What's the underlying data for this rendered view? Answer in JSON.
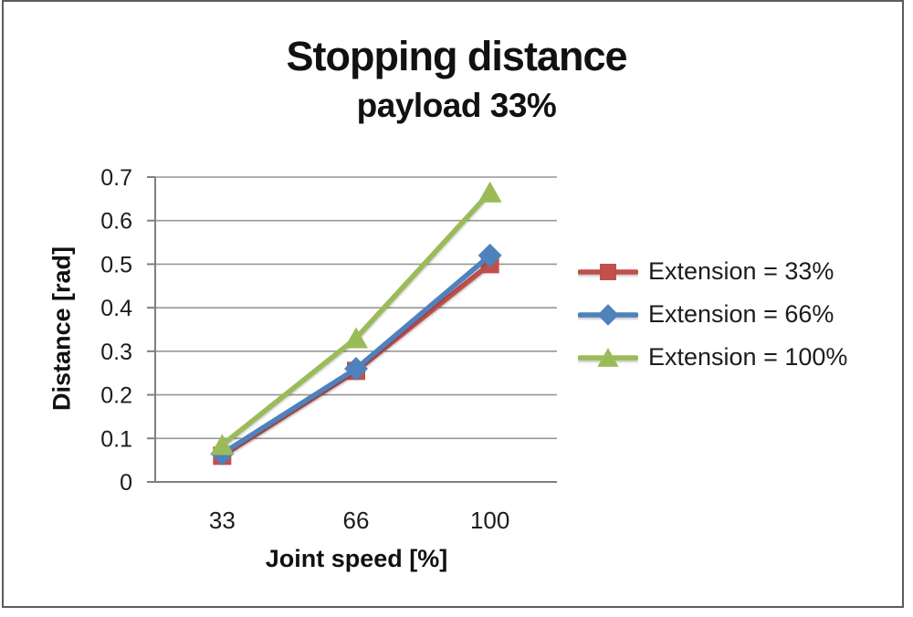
{
  "chart_data": {
    "type": "line",
    "title": "Stopping distance",
    "subtitle": "payload 33%",
    "xlabel": "Joint speed [%]",
    "ylabel": "Distance [rad]",
    "categories": [
      "33",
      "66",
      "100"
    ],
    "series": [
      {
        "name": "Extension = 33%",
        "marker": "square",
        "color": "#C0504D",
        "values": [
          0.06,
          0.255,
          0.5
        ]
      },
      {
        "name": "Extension = 66%",
        "marker": "diamond",
        "color": "#4F81BD",
        "values": [
          0.065,
          0.26,
          0.52
        ]
      },
      {
        "name": "Extension = 100%",
        "marker": "triangle",
        "color": "#9BBB59",
        "values": [
          0.085,
          0.33,
          0.665
        ]
      }
    ],
    "ylim": [
      0,
      0.7
    ],
    "y_ticks": [
      "0",
      "0.1",
      "0.2",
      "0.3",
      "0.4",
      "0.5",
      "0.6",
      "0.7"
    ],
    "grid": true,
    "legend_position": "right",
    "colors": {
      "gridline": "#979797",
      "axis": "#7f7f7f",
      "tick_text": "#1c1c1c",
      "frame_border": "#5c5c5c",
      "background": "#ffffff"
    }
  }
}
